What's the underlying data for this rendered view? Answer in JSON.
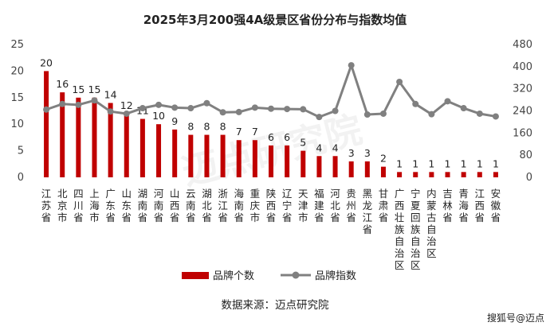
{
  "chart_data": {
    "type": "bar",
    "title": "2025年3月200强4A级景区省份分布与指数均值",
    "categories": [
      "江苏省",
      "北京市",
      "四川省",
      "上海市",
      "广东省",
      "山东省",
      "湖南省",
      "河南省",
      "山西省",
      "云南省",
      "湖北省",
      "浙江省",
      "海南省",
      "重庆市",
      "陕西省",
      "辽宁省",
      "天津市",
      "福建省",
      "河北省",
      "贵州省",
      "黑龙江省",
      "甘肃省",
      "广西壮族自治区",
      "宁夏回族自治区",
      "内蒙古自治区",
      "吉林省",
      "青海省",
      "江西省",
      "安徽省"
    ],
    "series": [
      {
        "name": "品牌个数",
        "type": "bar",
        "axis": "left",
        "color": "#c00000",
        "values": [
          20,
          16,
          15,
          15,
          14,
          12,
          11,
          10,
          9,
          8,
          8,
          8,
          7,
          7,
          6,
          6,
          5,
          4,
          4,
          3,
          3,
          2,
          1,
          1,
          1,
          1,
          1,
          1,
          1
        ]
      },
      {
        "name": "品牌指数",
        "type": "line",
        "axis": "right",
        "color": "#808080",
        "values": [
          245,
          265,
          262,
          278,
          238,
          230,
          250,
          262,
          252,
          250,
          268,
          235,
          236,
          252,
          248,
          247,
          246,
          218,
          240,
          405,
          227,
          230,
          345,
          265,
          228,
          275,
          250,
          230,
          220
        ]
      }
    ],
    "y_left": {
      "min": 0,
      "max": 25,
      "step": 5
    },
    "y_right": {
      "min": 0,
      "max": 480,
      "step": 80
    },
    "legend_position": "bottom",
    "grid": false
  },
  "source_text": "数据来源：迈点研究院",
  "watermark_text": "搜狐号@迈点",
  "watermark_logo": "迈点研究院"
}
